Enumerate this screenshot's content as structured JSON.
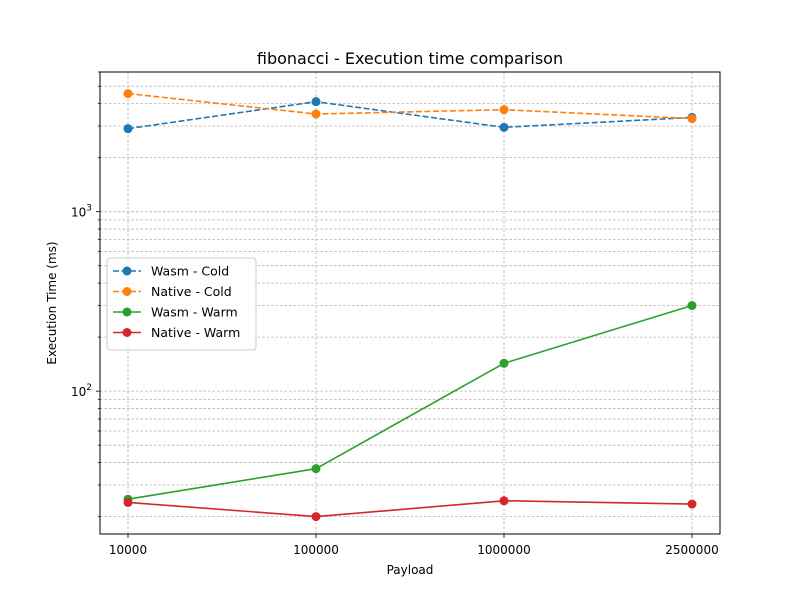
{
  "chart_data": {
    "type": "line",
    "title": "fibonacci - Execution time comparison",
    "xlabel": "Payload",
    "ylabel": "Execution Time (ms)",
    "categories": [
      "10000",
      "100000",
      "1000000",
      "2500000"
    ],
    "y_scale": "log",
    "ylim": [
      16,
      6000
    ],
    "y_tick_labels": [
      {
        "value": 100,
        "base": "10",
        "exp": "2"
      },
      {
        "value": 1000,
        "base": "10",
        "exp": "3"
      }
    ],
    "grid": true,
    "legend_position": "center-left",
    "series": [
      {
        "name": "Wasm - Cold",
        "values": [
          2900,
          4100,
          2950,
          3350
        ],
        "color": "#1f77b4",
        "dashed": true
      },
      {
        "name": "Native - Cold",
        "values": [
          4550,
          3500,
          3700,
          3300
        ],
        "color": "#ff7f0e",
        "dashed": true
      },
      {
        "name": "Wasm - Warm",
        "values": [
          25,
          37,
          143,
          300
        ],
        "color": "#2ca02c",
        "dashed": false
      },
      {
        "name": "Native - Warm",
        "values": [
          24,
          20,
          24.5,
          23.5
        ],
        "color": "#d62728",
        "dashed": false
      }
    ]
  }
}
